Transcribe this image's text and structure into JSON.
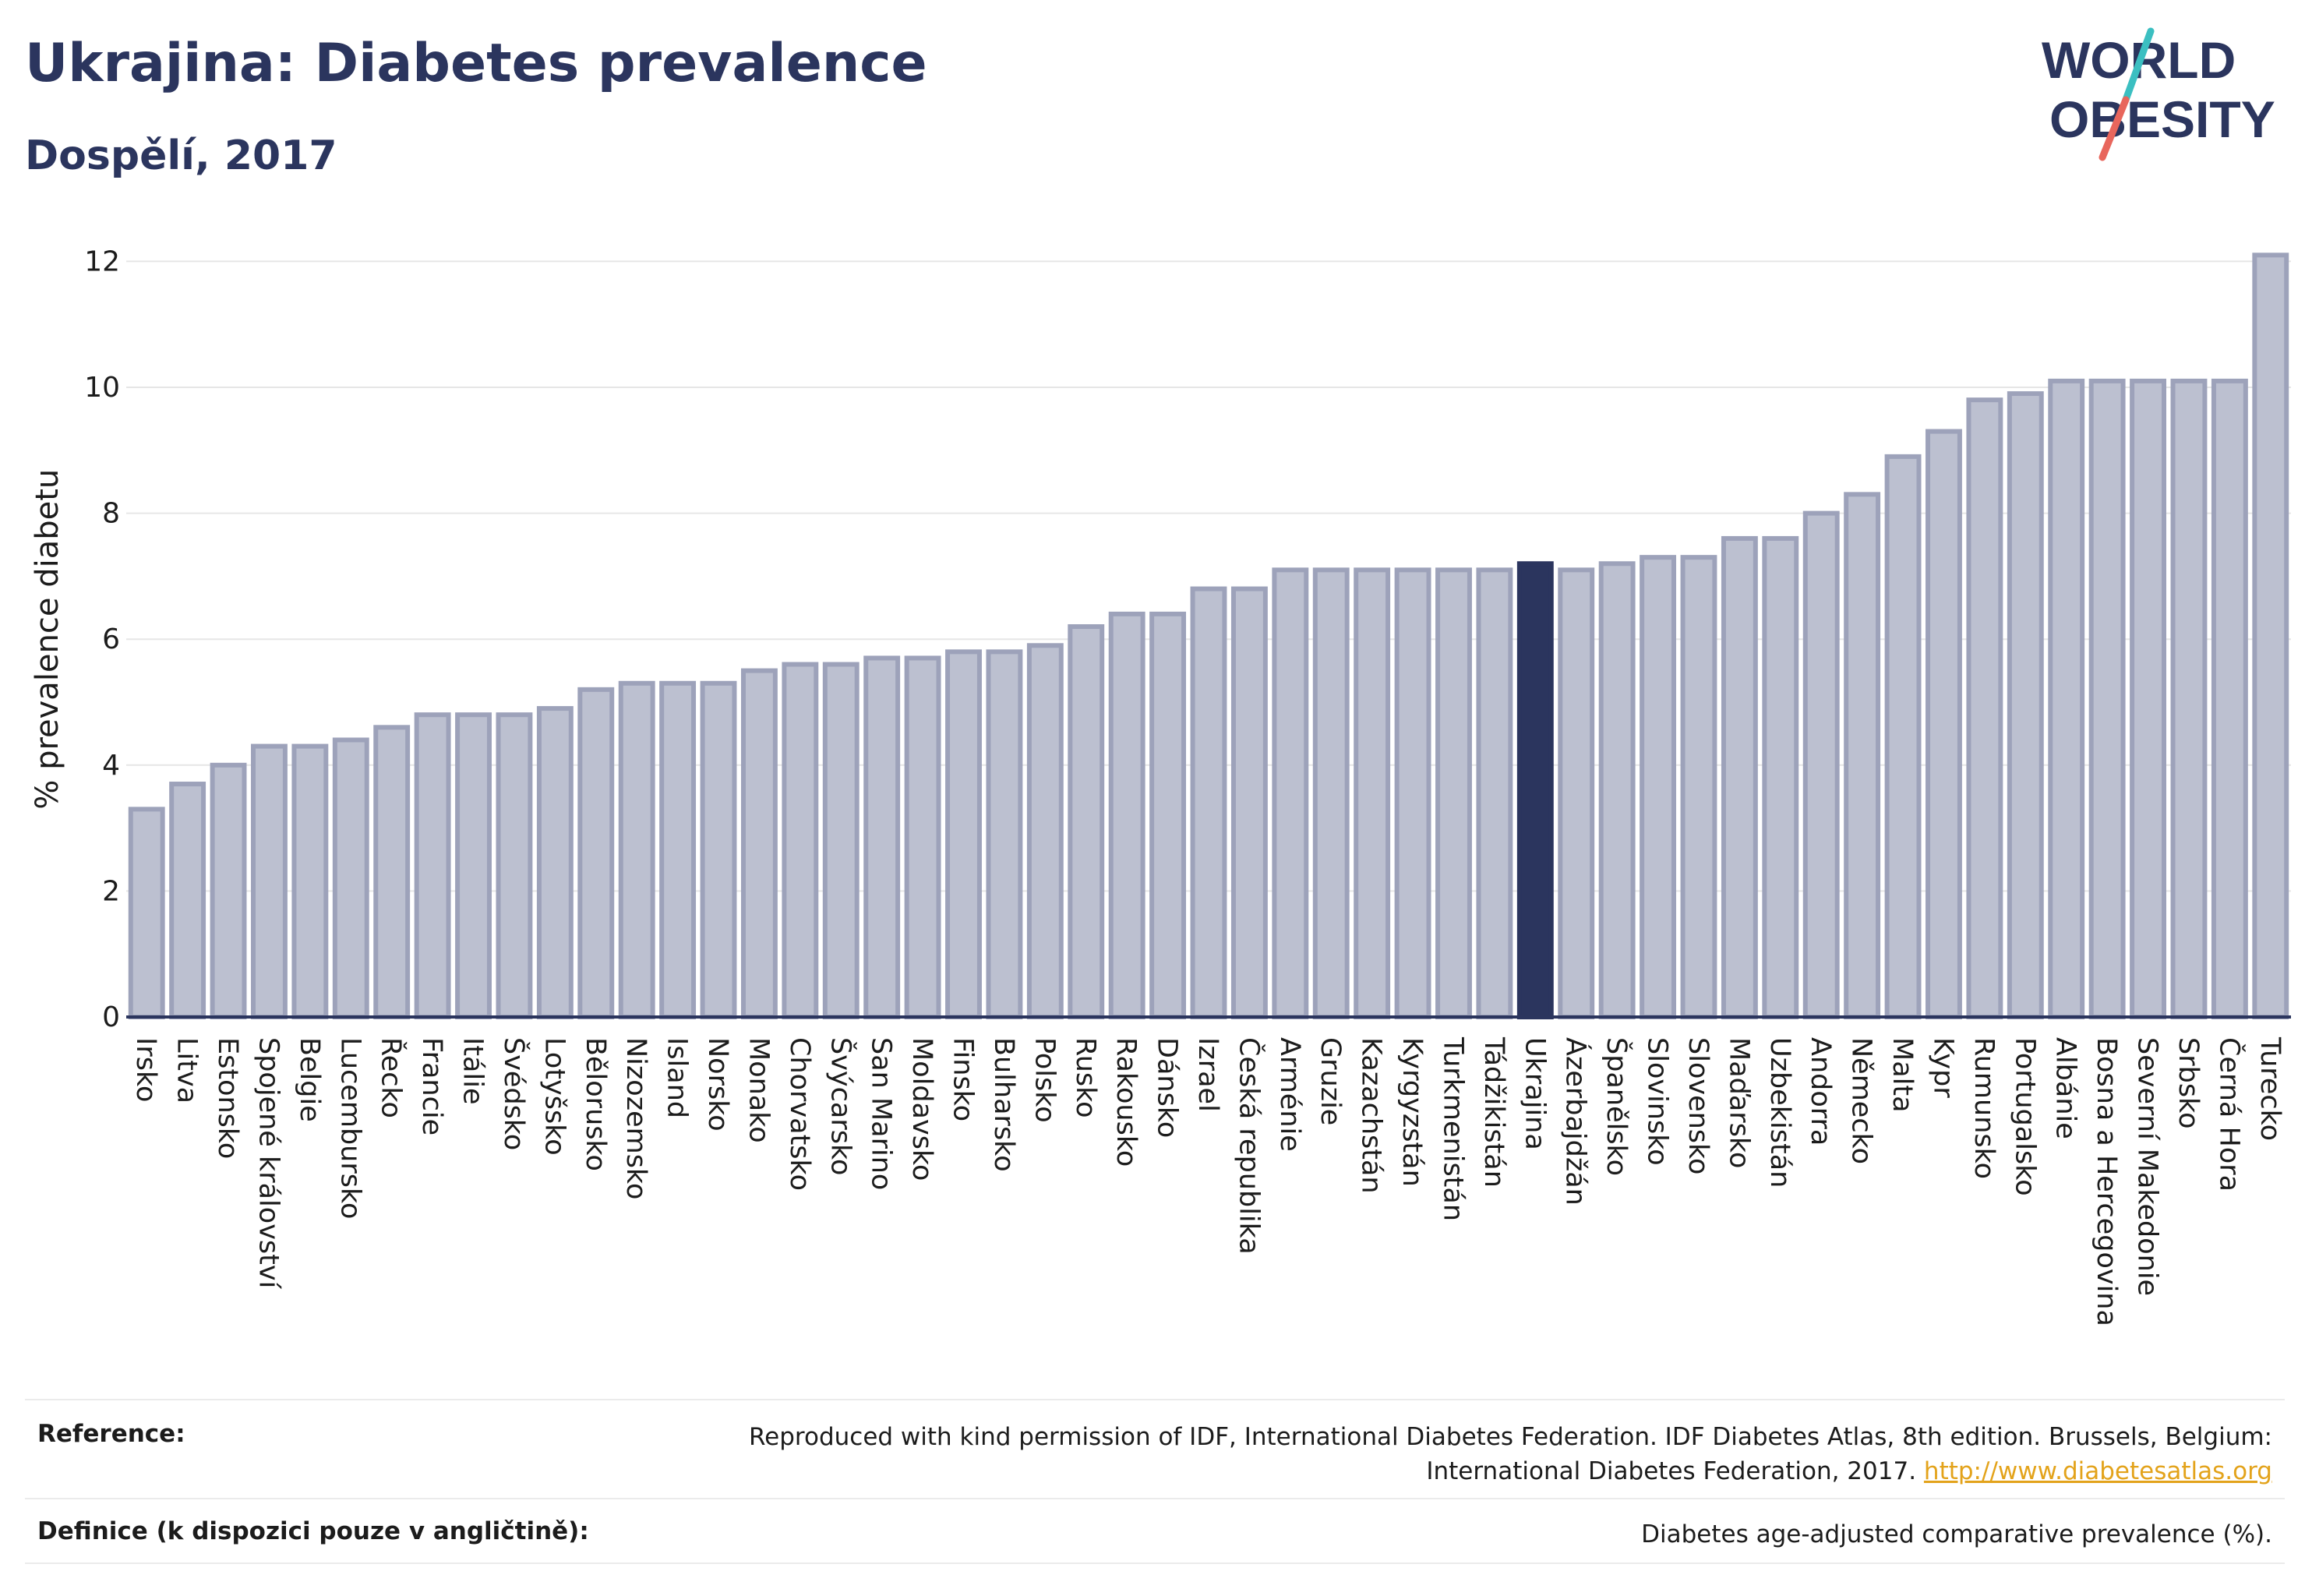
{
  "header": {
    "title": "Ukrajina: Diabetes prevalence",
    "subtitle": "Dospělí, 2017"
  },
  "logo": {
    "line1": "WORLD",
    "line2": "OBESITY",
    "colors": {
      "text": "#2b355e",
      "slash_top": "#3bbfc1",
      "slash_bottom": "#e8665c"
    }
  },
  "colors": {
    "bar_fill": "#bcc0d0",
    "bar_stroke": "#9da2ba",
    "highlight_fill": "#2b355e",
    "grid": "#e6e6e6",
    "axis": "#2b355e"
  },
  "chart_data": {
    "type": "bar",
    "ylabel": "% prevalence diabetu",
    "ylim": [
      0,
      12.5
    ],
    "yticks": [
      0,
      2,
      4,
      6,
      8,
      10,
      12
    ],
    "grid": true,
    "highlight": "Ukrajina",
    "categories": [
      "Irsko",
      "Litva",
      "Estonsko",
      "Spojené království",
      "Belgie",
      "Lucembursko",
      "Řecko",
      "Francie",
      "Itálie",
      "Švédsko",
      "Lotyšsko",
      "Bělorusko",
      "Nizozemsko",
      "Island",
      "Norsko",
      "Monako",
      "Chorvatsko",
      "Švýcarsko",
      "San Marino",
      "Moldavsko",
      "Finsko",
      "Bulharsko",
      "Polsko",
      "Rusko",
      "Rakousko",
      "Dánsko",
      "Izrael",
      "Česká republika",
      "Arménie",
      "Gruzie",
      "Kazachstán",
      "Kyrgyzstán",
      "Turkmenistán",
      "Tádžikistán",
      "Ukrajina",
      "Ázerbajdžán",
      "Španělsko",
      "Slovinsko",
      "Slovensko",
      "Maďarsko",
      "Uzbekistán",
      "Andorra",
      "Německo",
      "Malta",
      "Kypr",
      "Rumunsko",
      "Portugalsko",
      "Albánie",
      "Bosna a Hercegovina",
      "Severní Makedonie",
      "Srbsko",
      "Černá Hora",
      "Turecko"
    ],
    "values": [
      3.3,
      3.7,
      4.0,
      4.3,
      4.3,
      4.4,
      4.6,
      4.8,
      4.8,
      4.8,
      4.9,
      5.2,
      5.3,
      5.3,
      5.3,
      5.5,
      5.6,
      5.6,
      5.7,
      5.7,
      5.8,
      5.8,
      5.9,
      6.2,
      6.4,
      6.4,
      6.8,
      6.8,
      7.1,
      7.1,
      7.1,
      7.1,
      7.1,
      7.1,
      7.2,
      7.1,
      7.2,
      7.3,
      7.3,
      7.6,
      7.6,
      8.0,
      8.3,
      8.9,
      9.3,
      9.8,
      9.9,
      10.1,
      10.1,
      10.1,
      10.1,
      10.1,
      12.1
    ]
  },
  "footer": {
    "reference_label": "Reference:",
    "reference_text": "Reproduced with kind permission of IDF, International Diabetes Federation. IDF Diabetes Atlas, 8th edition. Brussels, Belgium:",
    "reference_text2": "International Diabetes Federation, 2017.",
    "reference_link": "http://www.diabetesatlas.org",
    "definition_label": "Definice (k dispozici pouze v angličtině):",
    "definition_text": "Diabetes age-adjusted comparative prevalence (%)."
  }
}
